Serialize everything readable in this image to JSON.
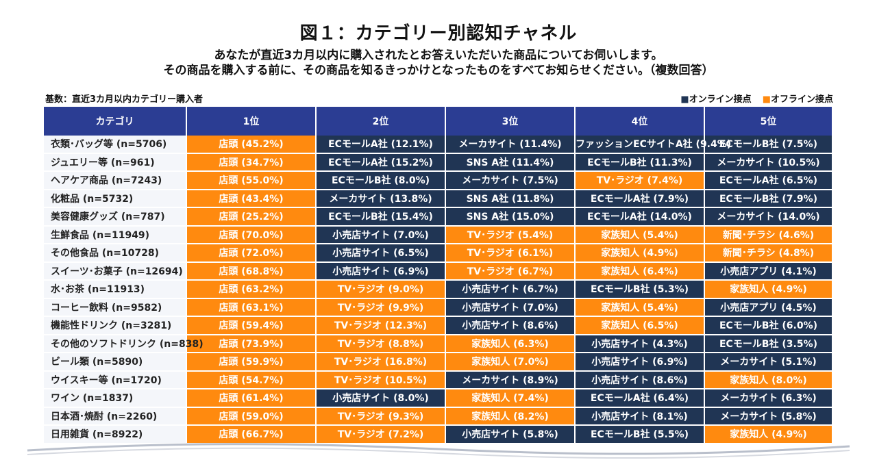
{
  "title": "図１：カテゴリー別認知チャネル",
  "subtitle_line1": "あなたが直近3カ月以内に購入されたとお答えいただいた商品についてお伺いします。",
  "subtitle_line2": "その商品を購入する前に、その商品を知るきっかけとなったものをすべてお知らせください。（複数回答）",
  "base_note": "基数：直近3カ月以内カテゴリー購入者",
  "legend": {
    "online": "■オンライン接点",
    "offline": "■オフライン接点",
    "online_color": "#203554",
    "offline_color": "#ff8a0f"
  },
  "chart_data": {
    "type": "table",
    "columns": [
      "カテゴリ",
      "1位",
      "2位",
      "3位",
      "4位",
      "5位"
    ],
    "rows": [
      {
        "category": "衣類･バッグ等 (n=5706)",
        "ranks": [
          {
            "label": "店頭 (45.2%)",
            "channel": "offline"
          },
          {
            "label": "ECモールA社 (12.1%)",
            "channel": "online"
          },
          {
            "label": "メーカサイト (11.4%)",
            "channel": "online"
          },
          {
            "label": "ファッションECサイトA社 (9.4%)",
            "channel": "online"
          },
          {
            "label": "ECモールB社 (7.5%)",
            "channel": "online"
          }
        ]
      },
      {
        "category": "ジュエリー等 (n=961)",
        "ranks": [
          {
            "label": "店頭 (34.7%)",
            "channel": "offline"
          },
          {
            "label": "ECモールA社 (15.2%)",
            "channel": "online"
          },
          {
            "label": "SNS A社 (11.4%)",
            "channel": "online"
          },
          {
            "label": "ECモールB社 (11.3%)",
            "channel": "online"
          },
          {
            "label": "メーカサイト (10.5%)",
            "channel": "online"
          }
        ]
      },
      {
        "category": "ヘアケア商品 (n=7243)",
        "ranks": [
          {
            "label": "店頭 (55.0%)",
            "channel": "offline"
          },
          {
            "label": "ECモールB社 (8.0%)",
            "channel": "online"
          },
          {
            "label": "メーカサイト (7.5%)",
            "channel": "online"
          },
          {
            "label": "TV･ラジオ (7.4%)",
            "channel": "offline"
          },
          {
            "label": "ECモールA社 (6.5%)",
            "channel": "online"
          }
        ]
      },
      {
        "category": "化粧品 (n=5732)",
        "ranks": [
          {
            "label": "店頭 (43.4%)",
            "channel": "offline"
          },
          {
            "label": "メーカサイト (13.8%)",
            "channel": "online"
          },
          {
            "label": "SNS A社 (11.8%)",
            "channel": "online"
          },
          {
            "label": "ECモールA社 (7.9%)",
            "channel": "online"
          },
          {
            "label": "ECモールB社 (7.9%)",
            "channel": "online"
          }
        ]
      },
      {
        "category": "美容健康グッズ (n=787)",
        "ranks": [
          {
            "label": "店頭 (25.2%)",
            "channel": "offline"
          },
          {
            "label": "ECモールB社 (15.4%)",
            "channel": "online"
          },
          {
            "label": "SNS A社 (15.0%)",
            "channel": "online"
          },
          {
            "label": "ECモールA社 (14.0%)",
            "channel": "online"
          },
          {
            "label": "メーカサイト (14.0%)",
            "channel": "online"
          }
        ]
      },
      {
        "category": "生鮮食品 (n=11949)",
        "ranks": [
          {
            "label": "店頭 (70.0%)",
            "channel": "offline"
          },
          {
            "label": "小売店サイト (7.0%)",
            "channel": "online"
          },
          {
            "label": "TV･ラジオ (5.4%)",
            "channel": "offline"
          },
          {
            "label": "家族知人 (5.4%)",
            "channel": "offline"
          },
          {
            "label": "新聞･チラシ (4.6%)",
            "channel": "offline"
          }
        ]
      },
      {
        "category": "その他食品 (n=10728)",
        "ranks": [
          {
            "label": "店頭 (72.0%)",
            "channel": "offline"
          },
          {
            "label": "小売店サイト (6.5%)",
            "channel": "online"
          },
          {
            "label": "TV･ラジオ (6.1%)",
            "channel": "offline"
          },
          {
            "label": "家族知人 (4.9%)",
            "channel": "offline"
          },
          {
            "label": "新聞･チラシ (4.8%)",
            "channel": "offline"
          }
        ]
      },
      {
        "category": "スイーツ･お菓子 (n=12694)",
        "ranks": [
          {
            "label": "店頭 (68.8%)",
            "channel": "offline"
          },
          {
            "label": "小売店サイト (6.9%)",
            "channel": "online"
          },
          {
            "label": "TV･ラジオ (6.7%)",
            "channel": "offline"
          },
          {
            "label": "家族知人 (6.4%)",
            "channel": "offline"
          },
          {
            "label": "小売店アプリ (4.1%)",
            "channel": "online"
          }
        ]
      },
      {
        "category": "水･お茶 (n=11913)",
        "ranks": [
          {
            "label": "店頭 (63.2%)",
            "channel": "offline"
          },
          {
            "label": "TV･ラジオ (9.0%)",
            "channel": "offline"
          },
          {
            "label": "小売店サイト (6.7%)",
            "channel": "online"
          },
          {
            "label": "ECモールB社 (5.3%)",
            "channel": "online"
          },
          {
            "label": "家族知人 (4.9%)",
            "channel": "offline"
          }
        ]
      },
      {
        "category": "コーヒー飲料 (n=9582)",
        "ranks": [
          {
            "label": "店頭 (63.1%)",
            "channel": "offline"
          },
          {
            "label": "TV･ラジオ (9.9%)",
            "channel": "offline"
          },
          {
            "label": "小売店サイト (7.0%)",
            "channel": "online"
          },
          {
            "label": "家族知人 (5.4%)",
            "channel": "offline"
          },
          {
            "label": "小売店アプリ (4.5%)",
            "channel": "online"
          }
        ]
      },
      {
        "category": "機能性ドリンク (n=3281)",
        "ranks": [
          {
            "label": "店頭 (59.4%)",
            "channel": "offline"
          },
          {
            "label": "TV･ラジオ (12.3%)",
            "channel": "offline"
          },
          {
            "label": "小売店サイト (8.6%)",
            "channel": "online"
          },
          {
            "label": "家族知人 (6.5%)",
            "channel": "offline"
          },
          {
            "label": "ECモールB社 (6.0%)",
            "channel": "online"
          }
        ]
      },
      {
        "category": "その他のソフトドリンク (n=838)",
        "ranks": [
          {
            "label": "店頭 (73.9%)",
            "channel": "offline"
          },
          {
            "label": "TV･ラジオ (8.8%)",
            "channel": "offline"
          },
          {
            "label": "家族知人 (6.3%)",
            "channel": "offline"
          },
          {
            "label": "小売店サイト (4.3%)",
            "channel": "online"
          },
          {
            "label": "ECモールB社 (3.5%)",
            "channel": "online"
          }
        ]
      },
      {
        "category": "ビール類 (n=5890)",
        "ranks": [
          {
            "label": "店頭 (59.9%)",
            "channel": "offline"
          },
          {
            "label": "TV･ラジオ (16.8%)",
            "channel": "offline"
          },
          {
            "label": "家族知人 (7.0%)",
            "channel": "offline"
          },
          {
            "label": "小売店サイト (6.9%)",
            "channel": "online"
          },
          {
            "label": "メーカサイト (5.1%)",
            "channel": "online"
          }
        ]
      },
      {
        "category": "ウイスキー等 (n=1720)",
        "ranks": [
          {
            "label": "店頭 (54.7%)",
            "channel": "offline"
          },
          {
            "label": "TV･ラジオ (10.5%)",
            "channel": "offline"
          },
          {
            "label": "メーカサイト (8.9%)",
            "channel": "online"
          },
          {
            "label": "小売店サイト (8.6%)",
            "channel": "online"
          },
          {
            "label": "家族知人 (8.0%)",
            "channel": "offline"
          }
        ]
      },
      {
        "category": "ワイン (n=1837)",
        "ranks": [
          {
            "label": "店頭 (61.4%)",
            "channel": "offline"
          },
          {
            "label": "小売店サイト (8.0%)",
            "channel": "online"
          },
          {
            "label": "家族知人 (7.4%)",
            "channel": "offline"
          },
          {
            "label": "ECモールA社 (6.4%)",
            "channel": "online"
          },
          {
            "label": "メーカサイト (6.3%)",
            "channel": "online"
          }
        ]
      },
      {
        "category": "日本酒･焼酎 (n=2260)",
        "ranks": [
          {
            "label": "店頭 (59.0%)",
            "channel": "offline"
          },
          {
            "label": "TV･ラジオ (9.3%)",
            "channel": "offline"
          },
          {
            "label": "家族知人 (8.2%)",
            "channel": "offline"
          },
          {
            "label": "小売店サイト (8.1%)",
            "channel": "online"
          },
          {
            "label": "メーカサイト (5.8%)",
            "channel": "online"
          }
        ]
      },
      {
        "category": "日用雑貨 (n=8922)",
        "ranks": [
          {
            "label": "店頭 (66.7%)",
            "channel": "offline"
          },
          {
            "label": "TV･ラジオ (7.2%)",
            "channel": "offline"
          },
          {
            "label": "小売店サイト (5.8%)",
            "channel": "online"
          },
          {
            "label": "ECモールB社 (5.5%)",
            "channel": "online"
          },
          {
            "label": "家族知人 (4.9%)",
            "channel": "offline"
          }
        ]
      }
    ]
  }
}
